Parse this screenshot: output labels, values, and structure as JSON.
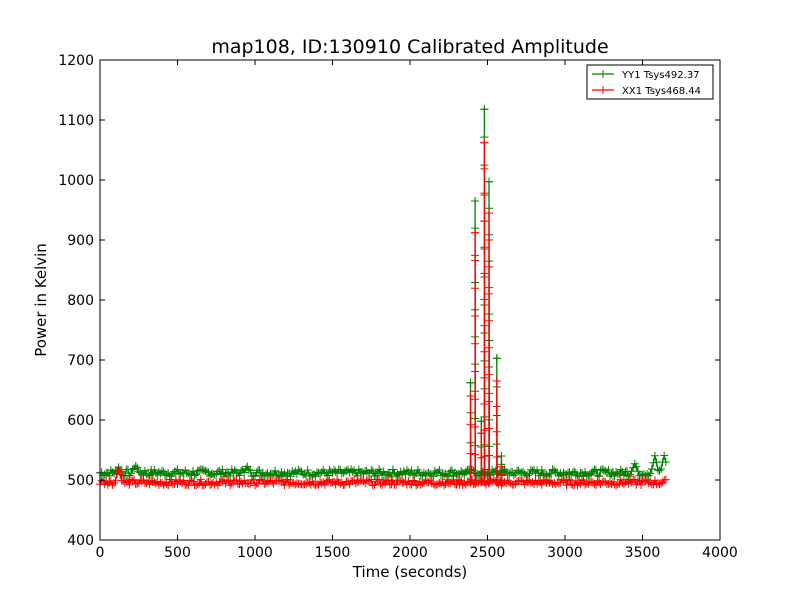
{
  "chart_data": {
    "type": "line",
    "title": "map108, ID:130910 Calibrated Amplitude",
    "xlabel": "Time (seconds)",
    "ylabel": "Power in Kelvin",
    "xlim": [
      0,
      4000
    ],
    "ylim": [
      400,
      1200
    ],
    "xticks": [
      0,
      500,
      1000,
      1500,
      2000,
      2500,
      3000,
      3500,
      4000
    ],
    "yticks": [
      400,
      500,
      600,
      700,
      800,
      900,
      1000,
      1100,
      1200
    ],
    "grid": false,
    "legend_position": "top-right",
    "marker": "+",
    "series": [
      {
        "name": "YY1 Tsys492.37",
        "color": "#008000",
        "baseline": 512,
        "noise": 6,
        "x_range": [
          0,
          3650
        ],
        "sample_step": 10,
        "bumps": [
          {
            "x": 120,
            "y": 522
          },
          {
            "x": 230,
            "y": 524
          },
          {
            "x": 950,
            "y": 522
          },
          {
            "x": 3450,
            "y": 527
          },
          {
            "x": 3580,
            "y": 540
          },
          {
            "x": 3640,
            "y": 542
          }
        ],
        "spikes": [
          {
            "x": 2390,
            "y": 662
          },
          {
            "x": 2420,
            "y": 965
          },
          {
            "x": 2460,
            "y": 598
          },
          {
            "x": 2480,
            "y": 1118
          },
          {
            "x": 2510,
            "y": 997
          },
          {
            "x": 2560,
            "y": 703
          },
          {
            "x": 2590,
            "y": 540
          }
        ]
      },
      {
        "name": "XX1 Tsys468.44",
        "color": "#ff0000",
        "baseline": 496,
        "noise": 5,
        "x_range": [
          0,
          3650
        ],
        "sample_step": 10,
        "bumps": [
          {
            "x": 120,
            "y": 518
          },
          {
            "x": 850,
            "y": 488
          }
        ],
        "spikes": [
          {
            "x": 2390,
            "y": 640
          },
          {
            "x": 2420,
            "y": 912
          },
          {
            "x": 2460,
            "y": 578
          },
          {
            "x": 2480,
            "y": 1062
          },
          {
            "x": 2510,
            "y": 945
          },
          {
            "x": 2560,
            "y": 665
          },
          {
            "x": 2590,
            "y": 522
          }
        ]
      }
    ]
  }
}
